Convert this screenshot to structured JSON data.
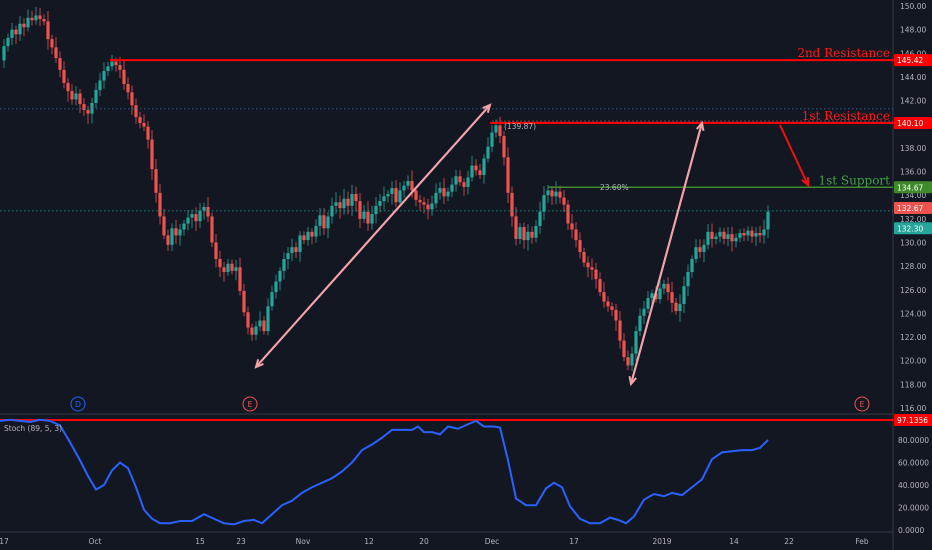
{
  "chart_data": {
    "type": "candlestick",
    "price_axis": {
      "ticks": [
        "150.00",
        "148.00",
        "146.00",
        "144.00",
        "142.00",
        "140.00",
        "138.00",
        "136.00",
        "134.00",
        "132.00",
        "130.00",
        "128.00",
        "126.00",
        "124.00",
        "122.00",
        "120.00",
        "118.00",
        "116.00"
      ],
      "range": [
        115.5,
        151
      ]
    },
    "x_axis": {
      "labels": [
        "17",
        "Oct",
        "15",
        "23",
        "Nov",
        "12",
        "20",
        "Dec",
        "17",
        "2019",
        "14",
        "22",
        "Feb"
      ]
    },
    "price_tags": {
      "resistance_2": "145.42",
      "resistance_1": "140.10",
      "support_1": "134.67",
      "last_close": "132.67",
      "prev": "132.30"
    },
    "annotations": {
      "resistance_2_label": "2nd Resistance",
      "resistance_1_label": "1st Resistance",
      "support_1_label": "1st Support",
      "fib_label": "23.60%",
      "fib_value": "(139.87)"
    },
    "events": [
      "D",
      "E",
      "E"
    ],
    "levels": {
      "resistance_2": 145.42,
      "resistance_1": 140.1,
      "support_1": 134.67,
      "swing_high_dotted": 141.3,
      "last_dotted": 132.67
    },
    "price_path": [
      [
        0,
        145.4
      ],
      [
        4,
        146.6
      ],
      [
        8,
        147.3
      ],
      [
        12,
        148.0
      ],
      [
        16,
        147.6
      ],
      [
        20,
        148.5
      ],
      [
        24,
        148.2
      ],
      [
        28,
        149.0
      ],
      [
        32,
        148.8
      ],
      [
        36,
        149.2
      ],
      [
        40,
        148.9
      ],
      [
        44,
        148.7
      ],
      [
        48,
        147.2
      ],
      [
        52,
        146.5
      ],
      [
        56,
        145.6
      ],
      [
        60,
        144.6
      ],
      [
        64,
        143.5
      ],
      [
        68,
        142.8
      ],
      [
        72,
        142.1
      ],
      [
        76,
        142.6
      ],
      [
        80,
        141.7
      ],
      [
        84,
        141.2
      ],
      [
        88,
        140.9
      ],
      [
        92,
        141.8
      ],
      [
        96,
        142.9
      ],
      [
        100,
        143.7
      ],
      [
        104,
        144.5
      ],
      [
        108,
        144.9
      ],
      [
        112,
        145.3
      ],
      [
        116,
        145.0
      ],
      [
        120,
        144.6
      ],
      [
        124,
        143.4
      ],
      [
        128,
        142.7
      ],
      [
        132,
        141.6
      ],
      [
        136,
        140.6
      ],
      [
        140,
        140.1
      ],
      [
        144,
        139.8
      ],
      [
        148,
        138.7
      ],
      [
        152,
        136.2
      ],
      [
        156,
        134.2
      ],
      [
        160,
        132.2
      ],
      [
        164,
        130.6
      ],
      [
        168,
        129.8
      ],
      [
        172,
        131.2
      ],
      [
        176,
        130.6
      ],
      [
        180,
        131.1
      ],
      [
        184,
        131.6
      ],
      [
        188,
        132.1
      ],
      [
        192,
        132.4
      ],
      [
        196,
        131.8
      ],
      [
        200,
        132.7
      ],
      [
        204,
        133.0
      ],
      [
        208,
        132.2
      ],
      [
        212,
        130.0
      ],
      [
        216,
        128.6
      ],
      [
        220,
        127.9
      ],
      [
        224,
        127.5
      ],
      [
        228,
        128.2
      ],
      [
        232,
        127.6
      ],
      [
        236,
        127.9
      ],
      [
        240,
        125.9
      ],
      [
        244,
        124.1
      ],
      [
        248,
        122.8
      ],
      [
        252,
        122.2
      ],
      [
        256,
        122.9
      ],
      [
        260,
        123.4
      ],
      [
        264,
        122.5
      ],
      [
        268,
        124.6
      ],
      [
        272,
        125.8
      ],
      [
        276,
        126.7
      ],
      [
        280,
        127.6
      ],
      [
        284,
        128.6
      ],
      [
        288,
        129.1
      ],
      [
        292,
        129.6
      ],
      [
        296,
        129.2
      ],
      [
        300,
        130.6
      ],
      [
        304,
        130.2
      ],
      [
        308,
        130.9
      ],
      [
        312,
        130.5
      ],
      [
        316,
        131.4
      ],
      [
        320,
        132.3
      ],
      [
        324,
        131.2
      ],
      [
        328,
        132.2
      ],
      [
        332,
        133.1
      ],
      [
        336,
        133.4
      ],
      [
        340,
        132.9
      ],
      [
        344,
        133.7
      ],
      [
        348,
        133.1
      ],
      [
        352,
        134.1
      ],
      [
        356,
        133.5
      ],
      [
        360,
        132.0
      ],
      [
        364,
        132.6
      ],
      [
        368,
        131.6
      ],
      [
        372,
        132.4
      ],
      [
        376,
        133.1
      ],
      [
        380,
        133.5
      ],
      [
        384,
        133.9
      ],
      [
        388,
        134.1
      ],
      [
        392,
        134.6
      ],
      [
        396,
        133.4
      ],
      [
        400,
        134.4
      ],
      [
        404,
        134.8
      ],
      [
        408,
        135.2
      ],
      [
        412,
        134.4
      ],
      [
        416,
        133.6
      ],
      [
        420,
        133.4
      ],
      [
        424,
        133.2
      ],
      [
        428,
        132.8
      ],
      [
        432,
        133.3
      ],
      [
        436,
        134.2
      ],
      [
        440,
        134.6
      ],
      [
        444,
        133.9
      ],
      [
        448,
        134.3
      ],
      [
        452,
        134.9
      ],
      [
        456,
        135.6
      ],
      [
        460,
        135.1
      ],
      [
        464,
        134.7
      ],
      [
        468,
        135.5
      ],
      [
        472,
        136.5
      ],
      [
        476,
        136.1
      ],
      [
        480,
        135.7
      ],
      [
        484,
        137.1
      ],
      [
        488,
        138.1
      ],
      [
        492,
        139.3
      ],
      [
        496,
        139.9
      ],
      [
        500,
        139.0
      ],
      [
        504,
        137.2
      ],
      [
        508,
        134.2
      ],
      [
        512,
        132.2
      ],
      [
        516,
        130.3
      ],
      [
        520,
        131.3
      ],
      [
        524,
        130.2
      ],
      [
        528,
        130.9
      ],
      [
        532,
        130.4
      ],
      [
        536,
        131.4
      ],
      [
        540,
        132.6
      ],
      [
        544,
        134.0
      ],
      [
        548,
        134.4
      ],
      [
        552,
        133.9
      ],
      [
        556,
        134.3
      ],
      [
        560,
        133.8
      ],
      [
        564,
        133.2
      ],
      [
        568,
        131.6
      ],
      [
        572,
        131.1
      ],
      [
        576,
        130.2
      ],
      [
        580,
        129.2
      ],
      [
        584,
        128.3
      ],
      [
        588,
        127.9
      ],
      [
        592,
        127.7
      ],
      [
        596,
        126.9
      ],
      [
        600,
        125.8
      ],
      [
        604,
        125.0
      ],
      [
        608,
        124.6
      ],
      [
        612,
        124.3
      ],
      [
        616,
        123.4
      ],
      [
        620,
        121.7
      ],
      [
        624,
        120.3
      ],
      [
        628,
        119.6
      ],
      [
        632,
        120.6
      ],
      [
        636,
        122.5
      ],
      [
        640,
        123.8
      ],
      [
        644,
        124.4
      ],
      [
        648,
        125.3
      ],
      [
        652,
        125.7
      ],
      [
        656,
        125.2
      ],
      [
        660,
        126.1
      ],
      [
        664,
        126.5
      ],
      [
        668,
        125.8
      ],
      [
        672,
        124.9
      ],
      [
        676,
        124.2
      ],
      [
        680,
        124.8
      ],
      [
        684,
        126.3
      ],
      [
        688,
        127.5
      ],
      [
        692,
        128.6
      ],
      [
        696,
        129.6
      ],
      [
        700,
        129.2
      ],
      [
        704,
        129.8
      ],
      [
        708,
        130.9
      ],
      [
        712,
        130.3
      ],
      [
        716,
        130.5
      ],
      [
        720,
        130.9
      ],
      [
        724,
        130.3
      ],
      [
        728,
        130.7
      ],
      [
        732,
        130.1
      ],
      [
        736,
        130.4
      ],
      [
        740,
        130.8
      ],
      [
        744,
        130.6
      ],
      [
        748,
        131.0
      ],
      [
        752,
        130.5
      ],
      [
        756,
        130.8
      ],
      [
        760,
        130.6
      ],
      [
        764,
        131.1
      ],
      [
        768,
        132.6
      ]
    ],
    "oscillator": {
      "label": "Stoch (89, 5, 3)",
      "ticks": [
        "80.0000",
        "60.0000",
        "40.0000",
        "20.0000",
        "0.0000"
      ],
      "level_tag": "97.1356",
      "range": [
        0,
        100
      ],
      "series": [
        [
          0,
          97
        ],
        [
          10,
          98
        ],
        [
          20,
          97
        ],
        [
          30,
          96
        ],
        [
          40,
          98
        ],
        [
          50,
          97
        ],
        [
          60,
          93
        ],
        [
          70,
          78
        ],
        [
          80,
          62
        ],
        [
          88,
          48
        ],
        [
          96,
          36
        ],
        [
          104,
          40
        ],
        [
          112,
          53
        ],
        [
          120,
          60
        ],
        [
          128,
          55
        ],
        [
          136,
          38
        ],
        [
          144,
          18
        ],
        [
          152,
          10
        ],
        [
          160,
          6
        ],
        [
          170,
          6
        ],
        [
          180,
          8
        ],
        [
          192,
          8
        ],
        [
          204,
          14
        ],
        [
          214,
          10
        ],
        [
          224,
          6
        ],
        [
          234,
          5
        ],
        [
          244,
          8
        ],
        [
          254,
          9
        ],
        [
          262,
          6
        ],
        [
          272,
          14
        ],
        [
          282,
          22
        ],
        [
          292,
          26
        ],
        [
          302,
          33
        ],
        [
          312,
          38
        ],
        [
          322,
          42
        ],
        [
          332,
          46
        ],
        [
          342,
          52
        ],
        [
          352,
          60
        ],
        [
          362,
          71
        ],
        [
          372,
          76
        ],
        [
          382,
          82
        ],
        [
          392,
          89
        ],
        [
          402,
          89
        ],
        [
          412,
          89
        ],
        [
          418,
          92
        ],
        [
          424,
          87
        ],
        [
          432,
          87
        ],
        [
          440,
          85
        ],
        [
          448,
          92
        ],
        [
          458,
          90
        ],
        [
          468,
          94
        ],
        [
          476,
          97
        ],
        [
          484,
          92
        ],
        [
          494,
          92
        ],
        [
          500,
          91
        ],
        [
          508,
          62
        ],
        [
          516,
          28
        ],
        [
          526,
          22
        ],
        [
          536,
          22
        ],
        [
          546,
          37
        ],
        [
          554,
          42
        ],
        [
          562,
          38
        ],
        [
          570,
          21
        ],
        [
          580,
          10
        ],
        [
          590,
          6
        ],
        [
          600,
          6
        ],
        [
          610,
          11
        ],
        [
          618,
          9
        ],
        [
          626,
          6
        ],
        [
          634,
          12
        ],
        [
          644,
          27
        ],
        [
          654,
          32
        ],
        [
          664,
          30
        ],
        [
          672,
          33
        ],
        [
          682,
          31
        ],
        [
          692,
          38
        ],
        [
          702,
          45
        ],
        [
          712,
          63
        ],
        [
          722,
          69
        ],
        [
          732,
          70
        ],
        [
          742,
          71
        ],
        [
          752,
          71
        ],
        [
          760,
          73
        ],
        [
          768,
          80
        ]
      ]
    }
  }
}
